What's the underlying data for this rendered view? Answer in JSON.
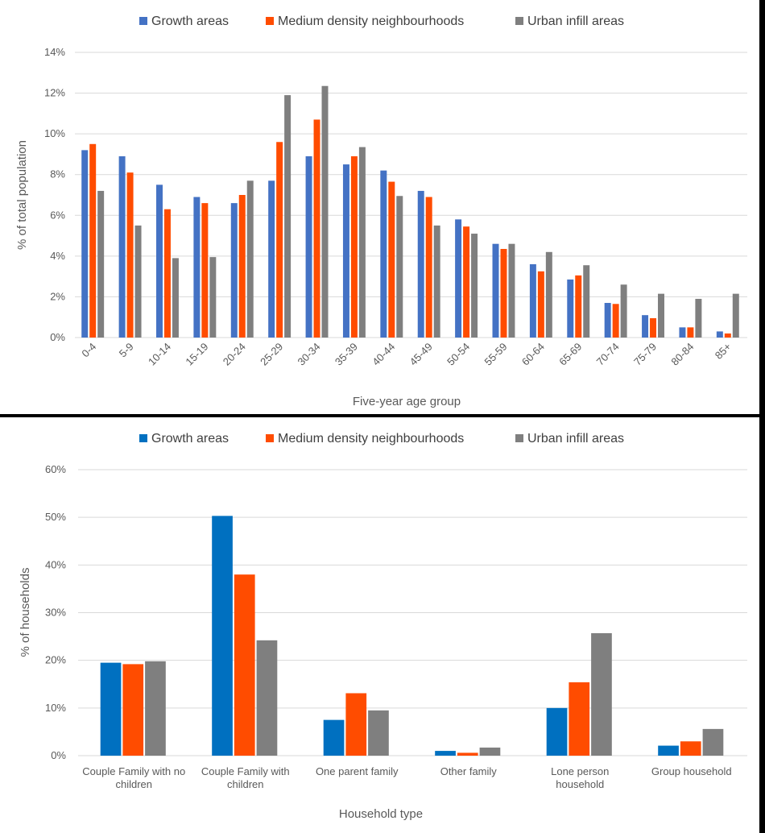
{
  "chart_data": [
    {
      "type": "bar",
      "title": "",
      "xlabel": "Five-year age group",
      "ylabel": "% of total population",
      "ylim": [
        0,
        14
      ],
      "yticks": [
        "0%",
        "2%",
        "4%",
        "6%",
        "8%",
        "10%",
        "12%",
        "14%"
      ],
      "grid": true,
      "legend_position": "top",
      "categories": [
        "0-4",
        "5-9",
        "10-14",
        "15-19",
        "20-24",
        "25-29",
        "30-34",
        "35-39",
        "40-44",
        "45-49",
        "50-54",
        "55-59",
        "60-64",
        "65-69",
        "70-74",
        "75-79",
        "80-84",
        "85+"
      ],
      "series": [
        {
          "name": "Growth areas",
          "color": "#4472c4",
          "values": [
            9.2,
            8.9,
            7.5,
            6.9,
            6.6,
            7.7,
            8.9,
            8.5,
            8.2,
            7.2,
            5.8,
            4.6,
            3.6,
            2.85,
            1.7,
            1.1,
            0.5,
            0.3
          ]
        },
        {
          "name": "Medium density neighbourhoods",
          "color": "#ff4c00",
          "values": [
            9.5,
            8.1,
            6.3,
            6.6,
            7.0,
            9.6,
            10.7,
            8.9,
            7.65,
            6.9,
            5.45,
            4.35,
            3.25,
            3.05,
            1.65,
            0.95,
            0.5,
            0.2
          ]
        },
        {
          "name": "Urban infill areas",
          "color": "#7f7f7f",
          "values": [
            7.2,
            5.5,
            3.9,
            3.95,
            7.7,
            11.9,
            12.35,
            9.35,
            6.95,
            5.5,
            5.1,
            4.6,
            4.2,
            3.55,
            2.6,
            2.15,
            1.9,
            2.15
          ]
        }
      ]
    },
    {
      "type": "bar",
      "title": "",
      "xlabel": "Household type",
      "ylabel": "% of households",
      "ylim": [
        0,
        60
      ],
      "yticks": [
        "0%",
        "10%",
        "20%",
        "30%",
        "40%",
        "50%",
        "60%"
      ],
      "grid": true,
      "legend_position": "top",
      "categories": [
        [
          "Couple Family with no",
          "children"
        ],
        [
          "Couple Family with",
          "children"
        ],
        [
          "One parent family"
        ],
        [
          "Other family"
        ],
        [
          "Lone person",
          "household"
        ],
        [
          "Group household"
        ]
      ],
      "series": [
        {
          "name": "Growth areas",
          "color": "#0070c0",
          "values": [
            19.5,
            50.3,
            7.5,
            1.0,
            10.0,
            2.1
          ]
        },
        {
          "name": "Medium density neighbourhoods",
          "color": "#ff4c00",
          "values": [
            19.2,
            38.0,
            13.1,
            0.6,
            15.4,
            3.0
          ]
        },
        {
          "name": "Urban infill areas",
          "color": "#7f7f7f",
          "values": [
            19.8,
            24.2,
            9.5,
            1.7,
            25.7,
            5.6
          ]
        }
      ]
    }
  ]
}
